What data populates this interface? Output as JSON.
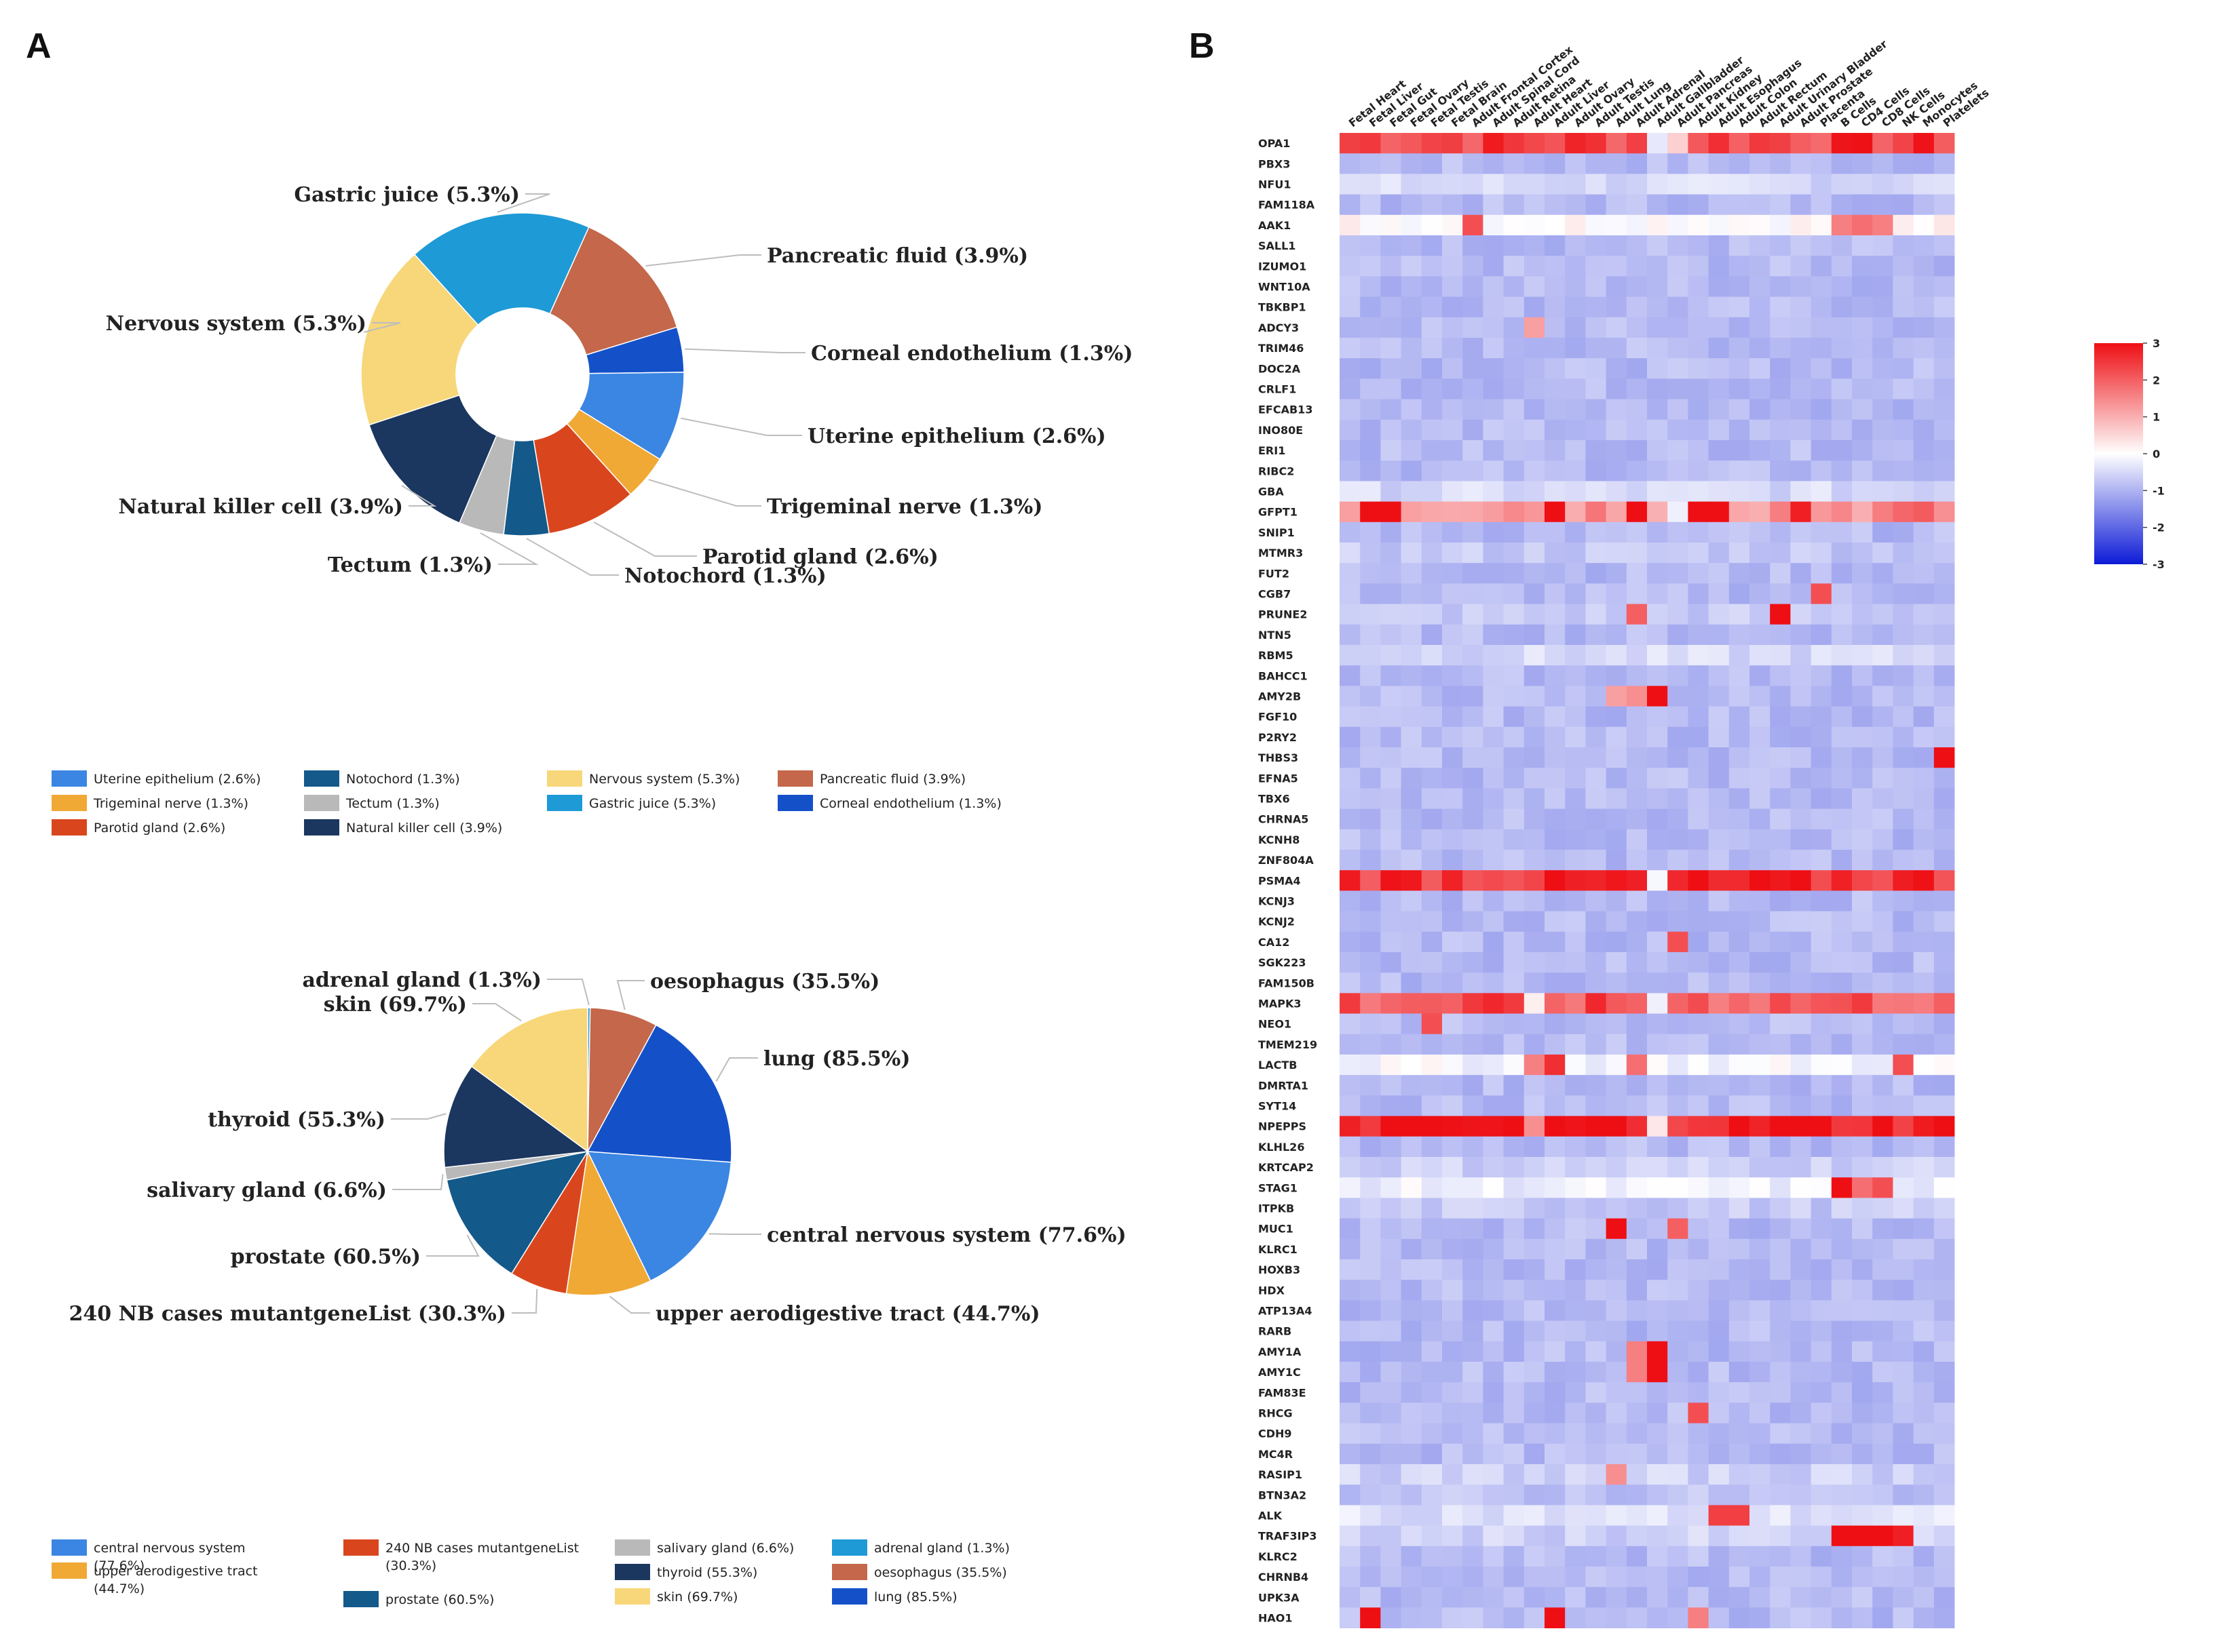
{
  "panels": {
    "a": "A",
    "b": "B"
  },
  "chart_data": [
    {
      "type": "pie",
      "style": "donut",
      "title": "",
      "slices": [
        {
          "label": "Gastric juice (5.3%)",
          "value": 5.3,
          "color": "#1e9ad6"
        },
        {
          "label": "Pancreatic fluid (3.9%)",
          "value": 3.9,
          "color": "#c4674a"
        },
        {
          "label": "Corneal endothelium (1.3%)",
          "value": 1.3,
          "color": "#1451c9"
        },
        {
          "label": "Uterine epithelium (2.6%)",
          "value": 2.6,
          "color": "#3b86e3"
        },
        {
          "label": "Trigeminal nerve (1.3%)",
          "value": 1.3,
          "color": "#f0a935"
        },
        {
          "label": "Parotid gland (2.6%)",
          "value": 2.6,
          "color": "#d9461e"
        },
        {
          "label": "Notochord (1.3%)",
          "value": 1.3,
          "color": "#13598a"
        },
        {
          "label": "Tectum (1.3%)",
          "value": 1.3,
          "color": "#b9b9b9"
        },
        {
          "label": "Natural killer cell (3.9%)",
          "value": 3.9,
          "color": "#1b365f"
        },
        {
          "label": "Nervous system (5.3%)",
          "value": 5.3,
          "color": "#f7d77a"
        }
      ],
      "legend": [
        {
          "label": "Uterine epithelium (2.6%)",
          "color": "#3b86e3"
        },
        {
          "label": "Notochord (1.3%)",
          "color": "#13598a"
        },
        {
          "label": "Nervous system (5.3%)",
          "color": "#f7d77a"
        },
        {
          "label": "Pancreatic fluid (3.9%)",
          "color": "#c4674a"
        },
        {
          "label": "Trigeminal nerve (1.3%)",
          "color": "#f0a935"
        },
        {
          "label": "Tectum (1.3%)",
          "color": "#b9b9b9"
        },
        {
          "label": "Gastric juice (5.3%)",
          "color": "#1e9ad6"
        },
        {
          "label": "Corneal endothelium (1.3%)",
          "color": "#1451c9"
        },
        {
          "label": "Parotid gland (2.6%)",
          "color": "#d9461e"
        },
        {
          "label": "Natural killer cell (3.9%)",
          "color": "#1b365f"
        }
      ]
    },
    {
      "type": "pie",
      "style": "pie",
      "title": "",
      "slices": [
        {
          "label": "adrenal gland (1.3%)",
          "value": 1.3,
          "color": "#1e9ad6"
        },
        {
          "label": "oesophagus (35.5%)",
          "value": 35.5,
          "color": "#c4674a"
        },
        {
          "label": "lung (85.5%)",
          "value": 85.5,
          "color": "#1451c9"
        },
        {
          "label": "central nervous system (77.6%)",
          "value": 77.6,
          "color": "#3b86e3"
        },
        {
          "label": "upper aerodigestive tract (44.7%)",
          "value": 44.7,
          "color": "#f0a935"
        },
        {
          "label": "240 NB cases mutantgeneList (30.3%)",
          "value": 30.3,
          "color": "#d9461e"
        },
        {
          "label": "prostate (60.5%)",
          "value": 60.5,
          "color": "#13598a"
        },
        {
          "label": "salivary gland (6.6%)",
          "value": 6.6,
          "color": "#b9b9b9"
        },
        {
          "label": "thyroid (55.3%)",
          "value": 55.3,
          "color": "#1b365f"
        },
        {
          "label": "skin (69.7%)",
          "value": 69.7,
          "color": "#f7d77a"
        }
      ],
      "legend": [
        {
          "label": "central nervous system (77.6%)",
          "color": "#3b86e3"
        },
        {
          "label": "240 NB cases mutantgeneList (30.3%)",
          "color": "#d9461e"
        },
        {
          "label": "salivary gland (6.6%)",
          "color": "#b9b9b9"
        },
        {
          "label": "adrenal gland (1.3%)",
          "color": "#1e9ad6"
        },
        {
          "label": "upper aerodigestive tract (44.7%)",
          "color": "#f0a935"
        },
        {
          "label": "prostate (60.5%)",
          "color": "#13598a"
        },
        {
          "label": "thyroid (55.3%)",
          "color": "#1b365f"
        },
        {
          "label": "oesophagus (35.5%)",
          "color": "#c4674a"
        },
        {
          "label": "skin (69.7%)",
          "color": "#f7d77a"
        },
        {
          "label": "lung (85.5%)",
          "color": "#1451c9"
        }
      ]
    },
    {
      "type": "heatmap",
      "title": "",
      "columns": [
        "Fetal Heart",
        "Fetal Liver",
        "Fetal Gut",
        "Fetal Ovary",
        "Fetal Testis",
        "Fetal Brain",
        "Adult Frontal Cortex",
        "Adult Spinal Cord",
        "Adult Retina",
        "Adult Heart",
        "Adult Liver",
        "Adult Ovary",
        "Adult Testis",
        "Adult Lung",
        "Adult Adrenal",
        "Adult Gallbladder",
        "Adult Pancreas",
        "Adult Kidney",
        "Adult Esophagus",
        "Adult Colon",
        "Adult Rectum",
        "Adult Urinary Bladder",
        "Adult Prostate",
        "Placenta",
        "B Cells",
        "CD4 Cells",
        "CD8 Cells",
        "NK Cells",
        "Monocytes",
        "Platelets"
      ],
      "rows": [
        "OPA1",
        "PBX3",
        "NFU1",
        "FAM118A",
        "AAK1",
        "SALL1",
        "IZUMO1",
        "WNT10A",
        "TBKBP1",
        "ADCY3",
        "TRIM46",
        "DOC2A",
        "CRLF1",
        "EFCAB13",
        "INO80E",
        "ERI1",
        "RIBC2",
        "GBA",
        "GFPT1",
        "SNIP1",
        "MTMR3",
        "FUT2",
        "CGB7",
        "PRUNE2",
        "NTN5",
        "RBM5",
        "BAHCC1",
        "AMY2B",
        "FGF10",
        "P2RY2",
        "THBS3",
        "EFNA5",
        "TBX6",
        "CHRNA5",
        "KCNH8",
        "ZNF804A",
        "PSMA4",
        "KCNJ3",
        "KCNJ2",
        "CA12",
        "SGK223",
        "FAM150B",
        "MAPK3",
        "NEO1",
        "TMEM219",
        "LACTB",
        "DMRTA1",
        "SYT14",
        "NPEPPS",
        "KLHL26",
        "KRTCAP2",
        "STAG1",
        "ITPKB",
        "MUC1",
        "KLRC1",
        "HOXB3",
        "HDX",
        "ATP13A4",
        "RARB",
        "AMY1A",
        "AMY1C",
        "FAM83E",
        "RHCG",
        "CDH9",
        "MC4R",
        "RASIP1",
        "BTN3A2",
        "ALK",
        "TRAF3IP3",
        "KLRC2",
        "CHRNB4",
        "UPK3A",
        "HAO1"
      ],
      "row_levels": {
        "OPA1": 2.4,
        "AAK1": 0.1,
        "GFPT1": 1.5,
        "PSMA4": 2.6,
        "MAPK3": 2.1,
        "LACTB": -0.1,
        "NPEPPS": 2.9,
        "STAG1": -0.2,
        "ALK": -0.4,
        "NFU1": -0.5,
        "RBM5": -0.5,
        "KRTCAP2": -0.6,
        "MTMR3": -0.7,
        "PRUNE2": -0.7,
        "GBA": -0.5,
        "TRAF3IP3": -0.6,
        "RASIP1": -0.6,
        "ITPKB": -0.7,
        "BTN3A2": -0.8
      },
      "default_level": -0.9,
      "hotspots": [
        {
          "row": "OPA1",
          "col": "Adult Gallbladder",
          "value": -0.3
        },
        {
          "row": "OPA1",
          "col": "Adult Pancreas",
          "value": 0.6
        },
        {
          "row": "AAK1",
          "col": "Adult Frontal Cortex",
          "value": 2.2
        },
        {
          "row": "AAK1",
          "col": "CD4 Cells",
          "value": 1.8
        },
        {
          "row": "AAK1",
          "col": "CD8 Cells",
          "value": 1.6
        },
        {
          "row": "AAK1",
          "col": "B Cells",
          "value": 1.6
        },
        {
          "row": "GFPT1",
          "col": "Fetal Liver",
          "value": 3.0
        },
        {
          "row": "GFPT1",
          "col": "Fetal Gut",
          "value": 3.0
        },
        {
          "row": "GFPT1",
          "col": "Adult Liver",
          "value": 3.0
        },
        {
          "row": "GFPT1",
          "col": "Adult Adrenal",
          "value": 3.0
        },
        {
          "row": "GFPT1",
          "col": "Adult Kidney",
          "value": 3.0
        },
        {
          "row": "GFPT1",
          "col": "Adult Esophagus",
          "value": 3.0
        },
        {
          "row": "GFPT1",
          "col": "Adult Prostate",
          "value": 2.8
        },
        {
          "row": "GFPT1",
          "col": "Adult Pancreas",
          "value": -0.2
        },
        {
          "row": "ADCY3",
          "col": "Adult Heart",
          "value": 1.2
        },
        {
          "row": "CGB7",
          "col": "Placenta",
          "value": 2.2
        },
        {
          "row": "PRUNE2",
          "col": "Adult Urinary Bladder",
          "value": 3.0
        },
        {
          "row": "PRUNE2",
          "col": "Adult Adrenal",
          "value": 2.0
        },
        {
          "row": "AMY2B",
          "col": "Adult Gallbladder",
          "value": 3.0
        },
        {
          "row": "AMY2B",
          "col": "Adult Adrenal",
          "value": 1.4
        },
        {
          "row": "AMY2B",
          "col": "Adult Lung",
          "value": 1.2
        },
        {
          "row": "THBS3",
          "col": "Platelets",
          "value": 3.0
        },
        {
          "row": "CA12",
          "col": "Adult Pancreas",
          "value": 2.2
        },
        {
          "row": "NEO1",
          "col": "Fetal Testis",
          "value": 2.2
        },
        {
          "row": "LACTB",
          "col": "Adult Liver",
          "value": 2.6
        },
        {
          "row": "LACTB",
          "col": "Adult Heart",
          "value": 1.6
        },
        {
          "row": "LACTB",
          "col": "NK Cells",
          "value": 2.2
        },
        {
          "row": "LACTB",
          "col": "Adult Adrenal",
          "value": 1.8
        },
        {
          "row": "STAG1",
          "col": "B Cells",
          "value": 3.0
        },
        {
          "row": "STAG1",
          "col": "CD8 Cells",
          "value": 2.2
        },
        {
          "row": "STAG1",
          "col": "CD4 Cells",
          "value": 1.8
        },
        {
          "row": "MUC1",
          "col": "Adult Lung",
          "value": 3.0
        },
        {
          "row": "MUC1",
          "col": "Adult Pancreas",
          "value": 2.0
        },
        {
          "row": "AMY1A",
          "col": "Adult Gallbladder",
          "value": 3.0
        },
        {
          "row": "AMY1A",
          "col": "Adult Adrenal",
          "value": 1.6
        },
        {
          "row": "AMY1C",
          "col": "Adult Gallbladder",
          "value": 3.0
        },
        {
          "row": "AMY1C",
          "col": "Adult Adrenal",
          "value": 1.6
        },
        {
          "row": "RHCG",
          "col": "Adult Kidney",
          "value": 2.2
        },
        {
          "row": "RASIP1",
          "col": "Adult Lung",
          "value": 1.4
        },
        {
          "row": "ALK",
          "col": "Adult Esophagus",
          "value": 2.4
        },
        {
          "row": "ALK",
          "col": "Adult Colon",
          "value": 2.4
        },
        {
          "row": "TRAF3IP3",
          "col": "B Cells",
          "value": 3.0
        },
        {
          "row": "TRAF3IP3",
          "col": "CD4 Cells",
          "value": 3.0
        },
        {
          "row": "TRAF3IP3",
          "col": "CD8 Cells",
          "value": 3.0
        },
        {
          "row": "TRAF3IP3",
          "col": "NK Cells",
          "value": 2.8
        },
        {
          "row": "HAO1",
          "col": "Fetal Liver",
          "value": 3.0
        },
        {
          "row": "HAO1",
          "col": "Adult Liver",
          "value": 3.0
        },
        {
          "row": "HAO1",
          "col": "Adult Kidney",
          "value": 1.6
        },
        {
          "row": "NPEPPS",
          "col": "Adult Gallbladder",
          "value": 0.3
        },
        {
          "row": "NPEPPS",
          "col": "Adult Heart",
          "value": 1.4
        },
        {
          "row": "MAPK3",
          "col": "Adult Gallbladder",
          "value": -0.2
        },
        {
          "row": "MAPK3",
          "col": "Adult Heart",
          "value": 0.2
        },
        {
          "row": "PSMA4",
          "col": "Adult Gallbladder",
          "value": -0.1
        }
      ],
      "colorbar": {
        "range": [
          -3,
          3
        ],
        "ticks": [
          "3",
          "2",
          "1",
          "0",
          "-1",
          "-2",
          "-3"
        ],
        "tick_values": [
          3,
          2,
          1,
          0,
          -1,
          -2,
          -3
        ],
        "colors": {
          "low": "#0d1bd6",
          "mid": "#ffffff",
          "high": "#ee0f14"
        }
      }
    }
  ]
}
